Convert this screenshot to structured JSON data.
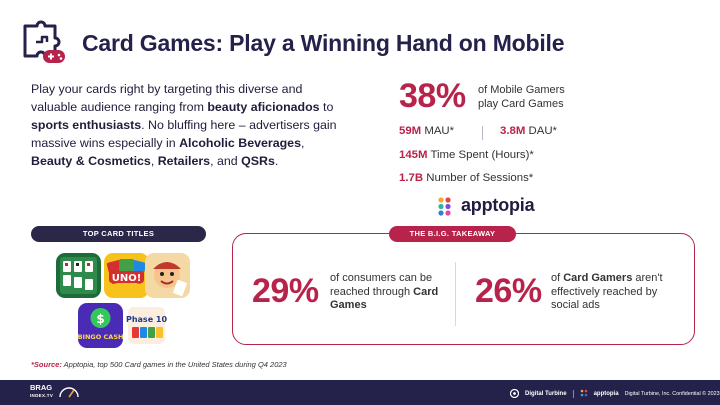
{
  "header": {
    "title": "Card Games: Play a Winning Hand on Mobile"
  },
  "intro": {
    "t1": "Play your cards right by targeting this diverse and valuable audience ranging from ",
    "b1": "beauty aficionados",
    "t2": " to ",
    "b2": "sports enthusiasts",
    "t3": ". No bluffing here – advertisers gain massive wins especially in ",
    "b3": "Alcoholic Beverages",
    "t4": ", ",
    "b4": "Beauty & Cosmetics",
    "t5": ", ",
    "b5": "Retailers",
    "t6": ", and ",
    "b6": "QSRs",
    "t7": "."
  },
  "stats": {
    "big_pct": "38%",
    "big_desc": "of Mobile Gamers play Card Games",
    "mau_value": "59M",
    "mau_label": "MAU*",
    "dau_value": "3.8M",
    "dau_label": "DAU*",
    "time_value": "145M",
    "time_label": "Time Spent (Hours)*",
    "sessions_value": "1.7B",
    "sessions_label": "Number of Sessions*",
    "source_brand": "apptopia"
  },
  "top_titles": {
    "label": "TOP CARD TITLES",
    "games": [
      {
        "icon": "solitaire-icon"
      },
      {
        "icon": "uno-icon",
        "text": "UNO!"
      },
      {
        "icon": "cartoon-character-icon"
      },
      {
        "icon": "bingo-cash-icon",
        "text": "BINGO CASH"
      },
      {
        "icon": "phase-10-icon",
        "text": "Phase 10"
      }
    ]
  },
  "takeaway": {
    "label": "THE B.I.G. TAKEAWAY",
    "left_pct": "29%",
    "left_t1": "of consumers can be reached through ",
    "left_b1": "Card Games",
    "right_pct": "26%",
    "right_t1": "of ",
    "right_b1": "Card Gamers",
    "right_t2": " aren't effectively reached by social ads"
  },
  "source": {
    "label": "*Source:",
    "text": " Apptopia, top 500 Card games in the United States during Q4 2023"
  },
  "footer": {
    "brag_line1": "BRAG",
    "brag_line2": "INDEX.TV",
    "dt_brand": "Digital Turbine",
    "apptopia_brand": "apptopia",
    "confidential": "Digital Turbine, Inc. Confidential © 2023",
    "page": "25"
  },
  "colors": {
    "accent": "#b7234a",
    "navy": "#24214a"
  }
}
